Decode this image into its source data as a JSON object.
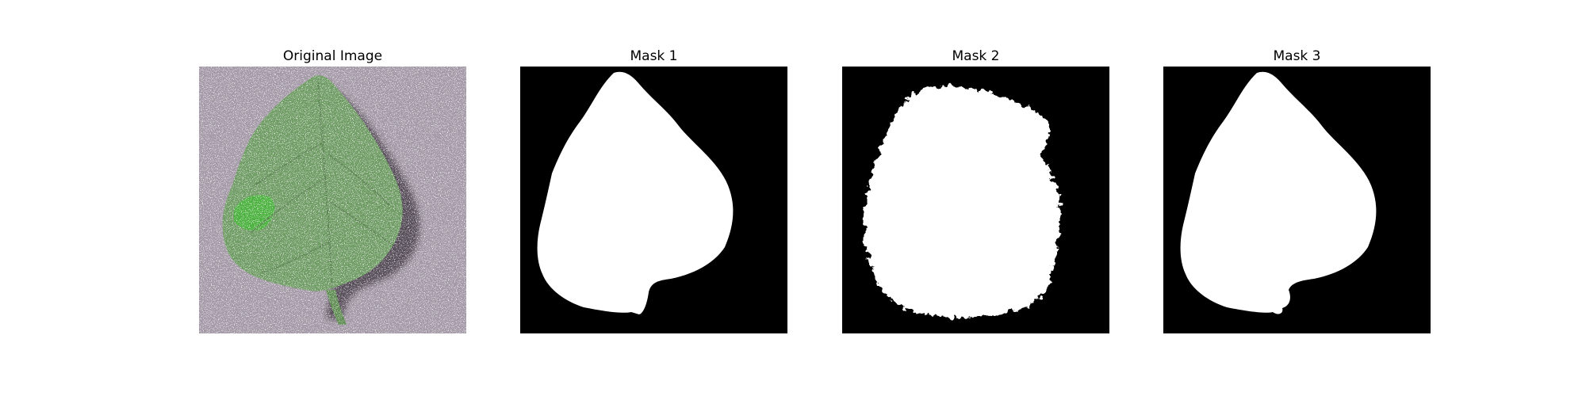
{
  "figure": {
    "panels": [
      {
        "title": "Original Image",
        "kind": "photo",
        "subject": "leaf-photo"
      },
      {
        "title": "Mask 1",
        "kind": "mask",
        "mask_style": "smooth"
      },
      {
        "title": "Mask 2",
        "kind": "mask",
        "mask_style": "noisy"
      },
      {
        "title": "Mask 3",
        "kind": "mask",
        "mask_style": "smooth"
      }
    ],
    "colors": {
      "background": "#ffffff",
      "mask_background": "#000000",
      "mask_foreground": "#ffffff",
      "photo_background": "#a49aa7",
      "leaf": "#6f9b64",
      "leaf_highlight": "#47b43a",
      "shadow": "#4a3f4b"
    }
  }
}
